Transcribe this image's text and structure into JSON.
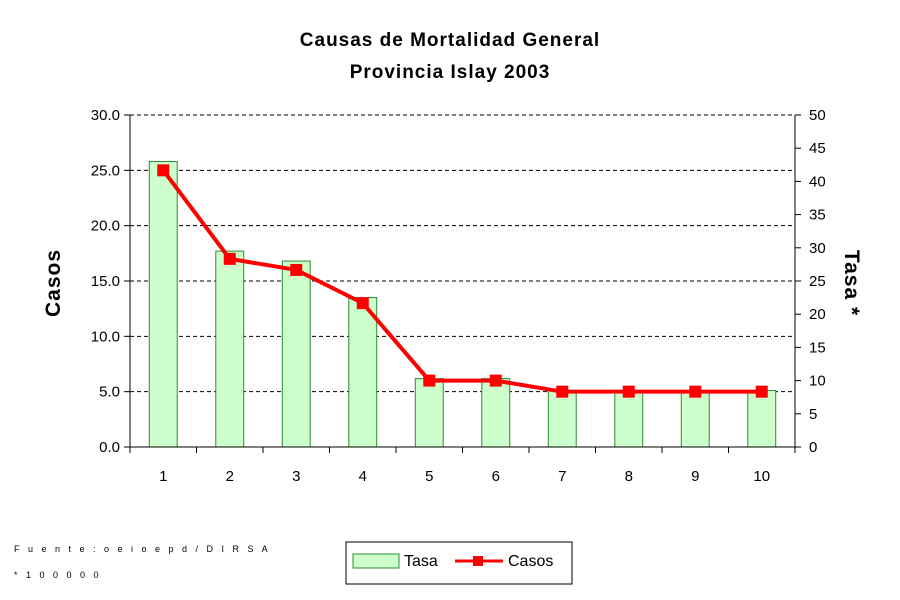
{
  "chart_data": {
    "type": "bar+line",
    "title": "Causas de Mortalidad General",
    "subtitle": "Provincia Islay 2003",
    "categories": [
      "1",
      "2",
      "3",
      "4",
      "5",
      "6",
      "7",
      "8",
      "9",
      "10"
    ],
    "series": [
      {
        "name": "Tasa",
        "type": "bar",
        "axis": "right",
        "color": "#ccffcc",
        "stroke": "#2e8b2e",
        "values": [
          43.0,
          29.5,
          28.0,
          22.5,
          10.3,
          10.3,
          8.5,
          8.5,
          8.5,
          8.5
        ]
      },
      {
        "name": "Casos",
        "type": "line",
        "axis": "left",
        "color": "#ff0000",
        "values": [
          25.0,
          17.0,
          16.0,
          13.0,
          6.0,
          6.0,
          5.0,
          5.0,
          5.0,
          5.0
        ]
      }
    ],
    "y_left": {
      "label": "Casos",
      "min": 0,
      "max": 30,
      "step": 5,
      "ticks": [
        "0.0",
        "5.0",
        "10.0",
        "15.0",
        "20.0",
        "25.0",
        "30.0"
      ]
    },
    "y_right": {
      "label": "Tasa *",
      "min": 0,
      "max": 50,
      "step": 5,
      "ticks": [
        "0",
        "5",
        "10",
        "15",
        "20",
        "25",
        "30",
        "35",
        "40",
        "45",
        "50"
      ]
    },
    "grid": "dashed horizontal",
    "legend_position": "bottom-center"
  },
  "footnotes": {
    "source": "F u e n t e : o e i o e p d / D I R S A",
    "note": "* 1 0 0 0 0 0"
  }
}
